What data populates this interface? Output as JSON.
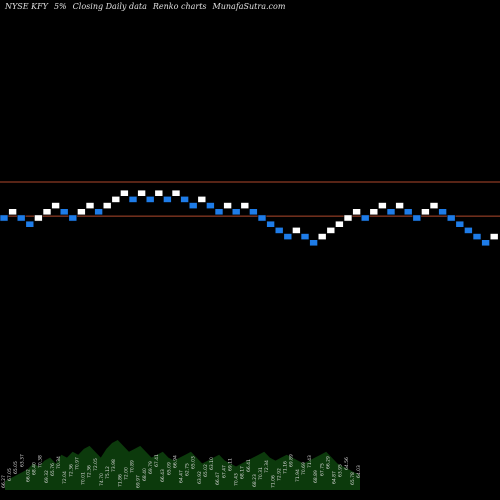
{
  "header": {
    "exchange_symbol": "NYSE KFY",
    "change": "5%",
    "mode": "Closing Daily data",
    "kind": "Renko  charts",
    "site": "MunafaSutra.com"
  },
  "colors": {
    "background": "#000000",
    "up_brick": "#ffffff",
    "down_brick": "#1e7ce8",
    "brick_outline": "#000000",
    "reference_line": "#b0492c",
    "volume_fill": "#0c3a0c",
    "volume_label": "#d8d8d8"
  },
  "chart_data": {
    "type": "renko",
    "title": "NYSE KFY 5%~  Closing Daily data  Renko  charts  MunafaSutra.com",
    "y_direction": "price",
    "bricks": [
      {
        "level": 0,
        "dir": "down"
      },
      {
        "level": 1,
        "dir": "up"
      },
      {
        "level": 0,
        "dir": "down"
      },
      {
        "level": -1,
        "dir": "down"
      },
      {
        "level": 0,
        "dir": "up"
      },
      {
        "level": 1,
        "dir": "up"
      },
      {
        "level": 2,
        "dir": "up"
      },
      {
        "level": 1,
        "dir": "down"
      },
      {
        "level": 0,
        "dir": "down"
      },
      {
        "level": 1,
        "dir": "up"
      },
      {
        "level": 2,
        "dir": "up"
      },
      {
        "level": 1,
        "dir": "down"
      },
      {
        "level": 2,
        "dir": "up"
      },
      {
        "level": 3,
        "dir": "up"
      },
      {
        "level": 4,
        "dir": "up"
      },
      {
        "level": 3,
        "dir": "down"
      },
      {
        "level": 4,
        "dir": "up"
      },
      {
        "level": 3,
        "dir": "down"
      },
      {
        "level": 4,
        "dir": "up"
      },
      {
        "level": 3,
        "dir": "down"
      },
      {
        "level": 4,
        "dir": "up"
      },
      {
        "level": 3,
        "dir": "down"
      },
      {
        "level": 2,
        "dir": "down"
      },
      {
        "level": 3,
        "dir": "up"
      },
      {
        "level": 2,
        "dir": "down"
      },
      {
        "level": 1,
        "dir": "down"
      },
      {
        "level": 2,
        "dir": "up"
      },
      {
        "level": 1,
        "dir": "down"
      },
      {
        "level": 2,
        "dir": "up"
      },
      {
        "level": 1,
        "dir": "down"
      },
      {
        "level": 0,
        "dir": "down"
      },
      {
        "level": -1,
        "dir": "down"
      },
      {
        "level": -2,
        "dir": "down"
      },
      {
        "level": -3,
        "dir": "down"
      },
      {
        "level": -2,
        "dir": "up"
      },
      {
        "level": -3,
        "dir": "down"
      },
      {
        "level": -4,
        "dir": "down"
      },
      {
        "level": -3,
        "dir": "up"
      },
      {
        "level": -2,
        "dir": "up"
      },
      {
        "level": -1,
        "dir": "up"
      },
      {
        "level": 0,
        "dir": "up"
      },
      {
        "level": 1,
        "dir": "up"
      },
      {
        "level": 0,
        "dir": "down"
      },
      {
        "level": 1,
        "dir": "up"
      },
      {
        "level": 2,
        "dir": "up"
      },
      {
        "level": 1,
        "dir": "down"
      },
      {
        "level": 2,
        "dir": "up"
      },
      {
        "level": 1,
        "dir": "down"
      },
      {
        "level": 0,
        "dir": "down"
      },
      {
        "level": 1,
        "dir": "up"
      },
      {
        "level": 2,
        "dir": "up"
      },
      {
        "level": 1,
        "dir": "down"
      },
      {
        "level": 0,
        "dir": "down"
      },
      {
        "level": -1,
        "dir": "down"
      },
      {
        "level": -2,
        "dir": "down"
      },
      {
        "level": -3,
        "dir": "down"
      },
      {
        "level": -4,
        "dir": "down"
      },
      {
        "level": -3,
        "dir": "up"
      }
    ],
    "reference_lines": [
      {
        "level": 5.8
      },
      {
        "level": 0.3
      }
    ],
    "volume_profile": [
      6,
      8,
      10,
      12,
      14,
      18,
      16,
      20,
      22,
      18,
      24,
      22,
      26,
      24,
      28,
      30,
      26,
      22,
      28,
      32,
      34,
      30,
      26,
      28,
      30,
      26,
      22,
      24,
      26,
      22,
      20,
      22,
      24,
      26,
      22,
      18,
      20,
      22,
      24,
      20,
      18,
      16,
      18,
      20,
      22,
      24,
      26,
      22,
      20,
      22,
      24,
      22,
      20,
      18,
      20,
      22,
      24,
      26,
      22,
      18,
      16,
      14,
      12,
      10
    ],
    "volume_labels": [
      "66.27",
      "67.05",
      "65.05",
      "63.37",
      "66.02",
      "68.40",
      "70.38",
      "69.32",
      "65.76",
      "70.34",
      "72.04",
      "72.36",
      "70.97",
      "70.01",
      "72.36",
      "72.05",
      "74.70",
      "75.12",
      "73.98",
      "71.86",
      "72.00",
      "70.89",
      "69.97",
      "68.40",
      "69.79",
      "67.41",
      "66.43",
      "65.09",
      "66.94",
      "64.47",
      "62.75",
      "65.03",
      "63.92",
      "65.02",
      "63.10",
      "66.47",
      "67.47",
      "69.11",
      "70.43",
      "68.17",
      "66.41",
      "68.23",
      "70.31",
      "72.34",
      "71.06",
      "72.92",
      "71.16",
      "69.89",
      "71.94",
      "70.69",
      "71.43",
      "68.89",
      "67.75",
      "66.29",
      "64.87",
      "63.95",
      "64.56",
      "65.78",
      "64.03"
    ]
  }
}
